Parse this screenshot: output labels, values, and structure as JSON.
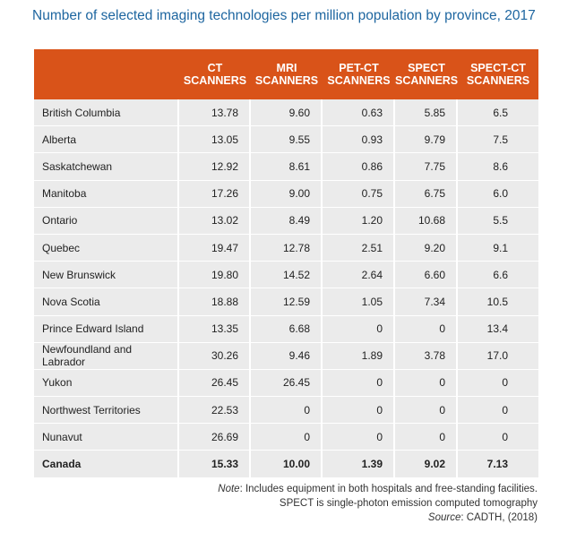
{
  "title": "Number of selected imaging technologies per million population by province, 2017",
  "columns": [
    {
      "line1": "CT",
      "line2": "SCANNERS"
    },
    {
      "line1": "MRI",
      "line2": "SCANNERS"
    },
    {
      "line1": "PET-CT",
      "line2": "SCANNERS"
    },
    {
      "line1": "SPECT",
      "line2": "SCANNERS"
    },
    {
      "line1": "SPECT-CT",
      "line2": "SCANNERS"
    }
  ],
  "rows": [
    {
      "name": "British Columbia",
      "values": [
        "13.78",
        "9.60",
        "0.63",
        "5.85",
        "6.5"
      ]
    },
    {
      "name": "Alberta",
      "values": [
        "13.05",
        "9.55",
        "0.93",
        "9.79",
        "7.5"
      ]
    },
    {
      "name": "Saskatchewan",
      "values": [
        "12.92",
        "8.61",
        "0.86",
        "7.75",
        "8.6"
      ]
    },
    {
      "name": "Manitoba",
      "values": [
        "17.26",
        "9.00",
        "0.75",
        "6.75",
        "6.0"
      ]
    },
    {
      "name": "Ontario",
      "values": [
        "13.02",
        "8.49",
        "1.20",
        "10.68",
        "5.5"
      ]
    },
    {
      "name": "Quebec",
      "values": [
        "19.47",
        "12.78",
        "2.51",
        "9.20",
        "9.1"
      ]
    },
    {
      "name": "New Brunswick",
      "values": [
        "19.80",
        "14.52",
        "2.64",
        "6.60",
        "6.6"
      ]
    },
    {
      "name": "Nova Scotia",
      "values": [
        "18.88",
        "12.59",
        "1.05",
        "7.34",
        "10.5"
      ]
    },
    {
      "name": "Prince Edward Island",
      "values": [
        "13.35",
        "6.68",
        "0",
        "0",
        "13.4"
      ]
    },
    {
      "name": "Newfoundland and Labrador",
      "values": [
        "30.26",
        "9.46",
        "1.89",
        "3.78",
        "17.0"
      ]
    },
    {
      "name": "Yukon",
      "values": [
        "26.45",
        "26.45",
        "0",
        "0",
        "0"
      ]
    },
    {
      "name": "Northwest Territories",
      "values": [
        "22.53",
        "0",
        "0",
        "0",
        "0"
      ]
    },
    {
      "name": "Nunavut",
      "values": [
        "26.69",
        "0",
        "0",
        "0",
        "0"
      ]
    }
  ],
  "total": {
    "name": "Canada",
    "values": [
      "15.33",
      "10.00",
      "1.39",
      "9.02",
      "7.13"
    ]
  },
  "notes": {
    "note_label": "Note",
    "note_text": ": Includes equipment in both hospitals and free-standing facilities.",
    "spect_text": "SPECT is single-photon emission computed tomography",
    "source_label": "Source",
    "source_text": ": CADTH, (2018)"
  },
  "colors": {
    "header_bg": "#d95319",
    "title": "#1e66a0",
    "cell_bg": "#ebebeb"
  }
}
